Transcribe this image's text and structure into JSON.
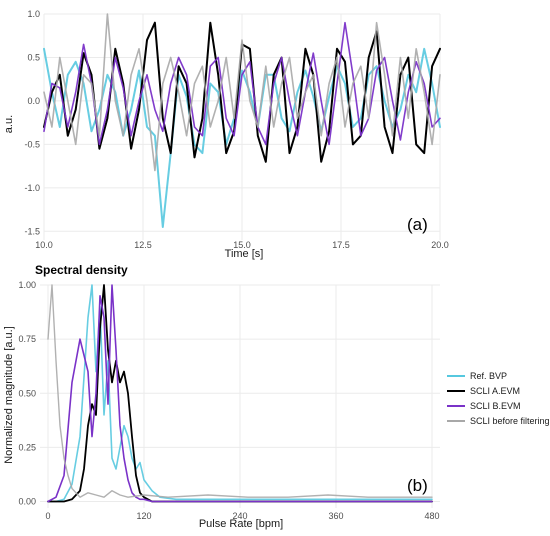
{
  "chart_data": [
    {
      "type": "line",
      "panel_label": "(a)",
      "xlabel": "Time [s]",
      "ylabel": "a.u.",
      "xlim": [
        10.0,
        20.0
      ],
      "ylim": [
        -1.6,
        1.0
      ],
      "x_ticks": [
        10.0,
        12.5,
        15.0,
        17.5,
        20.0
      ],
      "x_tick_labels": [
        "10.0",
        "12.5",
        "15.0",
        "17.5",
        "20.0"
      ],
      "y_ticks": [
        1.0,
        0.5,
        0.0,
        -0.5,
        -1.0,
        -1.5
      ],
      "y_tick_labels": [
        "1.0",
        "0.5",
        "0.0",
        "-0.5",
        "-1.0",
        "-1.5"
      ],
      "grid": true,
      "series": [
        {
          "color": "#56c8df",
          "x": [
            10.0,
            10.2,
            10.4,
            10.6,
            10.8,
            11.0,
            11.2,
            11.4,
            11.6,
            11.8,
            12.0,
            12.2,
            12.4,
            12.6,
            12.8,
            13.0,
            13.2,
            13.4,
            13.6,
            13.8,
            14.0,
            14.2,
            14.4,
            14.6,
            14.8,
            15.0,
            15.2,
            15.4,
            15.6,
            15.8,
            16.0,
            16.2,
            16.4,
            16.6,
            16.8,
            17.0,
            17.2,
            17.4,
            17.6,
            17.8,
            18.0,
            18.2,
            18.4,
            18.6,
            18.8,
            19.0,
            19.2,
            19.4,
            19.6,
            19.8,
            20.0
          ],
          "y": [
            0.6,
            0.1,
            -0.3,
            0.3,
            0.45,
            0.2,
            -0.35,
            -0.1,
            0.3,
            0.1,
            -0.4,
            -0.1,
            0.35,
            -0.3,
            -0.4,
            -1.45,
            -0.6,
            0.3,
            0.05,
            -0.5,
            -0.6,
            0.2,
            0.1,
            -0.5,
            -0.2,
            0.35,
            0.1,
            -0.3,
            0.3,
            0.3,
            -0.2,
            -0.35,
            0.1,
            0.35,
            0.05,
            -0.35,
            0.05,
            0.4,
            0.2,
            -0.3,
            -0.2,
            0.3,
            0.4,
            0.0,
            -0.3,
            -0.1,
            0.3,
            0.1,
            0.6,
            0.2,
            -0.3
          ]
        },
        {
          "color": "#000000",
          "x": [
            10.0,
            10.2,
            10.4,
            10.6,
            10.8,
            11.0,
            11.2,
            11.4,
            11.6,
            11.8,
            12.0,
            12.2,
            12.4,
            12.6,
            12.8,
            13.0,
            13.2,
            13.4,
            13.6,
            13.8,
            14.0,
            14.2,
            14.4,
            14.6,
            14.8,
            15.0,
            15.2,
            15.4,
            15.6,
            15.8,
            16.0,
            16.2,
            16.4,
            16.6,
            16.8,
            17.0,
            17.2,
            17.4,
            17.6,
            17.8,
            18.0,
            18.2,
            18.4,
            18.6,
            18.8,
            19.0,
            19.2,
            19.4,
            19.6,
            19.8,
            20.0
          ],
          "y": [
            -0.3,
            0.1,
            0.3,
            -0.4,
            -0.1,
            0.55,
            0.3,
            -0.55,
            -0.2,
            0.6,
            0.2,
            -0.55,
            -0.1,
            0.7,
            0.9,
            -0.2,
            -0.6,
            0.4,
            0.2,
            -0.65,
            -0.2,
            0.9,
            0.3,
            -0.6,
            -0.35,
            0.65,
            0.6,
            -0.4,
            -0.7,
            0.3,
            0.5,
            -0.6,
            -0.3,
            0.6,
            0.3,
            -0.7,
            -0.35,
            0.6,
            0.45,
            -0.5,
            -0.4,
            0.5,
            0.8,
            -0.3,
            -0.6,
            0.3,
            0.5,
            -0.5,
            -0.6,
            0.4,
            0.6
          ]
        },
        {
          "color": "#7a32c8",
          "x": [
            10.0,
            10.2,
            10.4,
            10.6,
            10.8,
            11.0,
            11.2,
            11.4,
            11.6,
            11.8,
            12.0,
            12.2,
            12.4,
            12.6,
            12.8,
            13.0,
            13.2,
            13.4,
            13.6,
            13.8,
            14.0,
            14.2,
            14.4,
            14.6,
            14.8,
            15.0,
            15.2,
            15.4,
            15.6,
            15.8,
            16.0,
            16.2,
            16.4,
            16.6,
            16.8,
            17.0,
            17.2,
            17.4,
            17.6,
            17.8,
            18.0,
            18.2,
            18.4,
            18.6,
            18.8,
            19.0,
            19.2,
            19.4,
            19.6,
            19.8,
            20.0
          ],
          "y": [
            -0.35,
            0.2,
            0.15,
            -0.3,
            0.1,
            0.65,
            0.2,
            -0.5,
            -0.1,
            0.5,
            0.15,
            -0.4,
            0.0,
            0.3,
            -0.1,
            -0.35,
            0.2,
            0.5,
            0.3,
            -0.3,
            -0.4,
            0.4,
            0.5,
            -0.2,
            -0.4,
            0.3,
            0.45,
            -0.3,
            -0.5,
            0.2,
            0.5,
            0.0,
            -0.4,
            0.1,
            0.55,
            0.0,
            -0.5,
            0.2,
            0.9,
            0.3,
            -0.4,
            -0.2,
            0.35,
            0.5,
            0.0,
            -0.45,
            0.1,
            0.45,
            0.2,
            -0.3,
            -0.2
          ]
        },
        {
          "color": "#a8a8a8",
          "x": [
            10.0,
            10.2,
            10.4,
            10.6,
            10.8,
            11.0,
            11.2,
            11.4,
            11.6,
            11.8,
            12.0,
            12.2,
            12.4,
            12.6,
            12.8,
            13.0,
            13.2,
            13.4,
            13.6,
            13.8,
            14.0,
            14.2,
            14.4,
            14.6,
            14.8,
            15.0,
            15.2,
            15.4,
            15.6,
            15.8,
            16.0,
            16.2,
            16.4,
            16.6,
            16.8,
            17.0,
            17.2,
            17.4,
            17.6,
            17.8,
            18.0,
            18.2,
            18.4,
            18.6,
            18.8,
            19.0,
            19.2,
            19.4,
            19.6,
            19.8,
            20.0
          ],
          "y": [
            0.1,
            -0.3,
            0.5,
            0.0,
            -0.5,
            0.3,
            0.2,
            -0.4,
            1.0,
            0.0,
            -0.4,
            0.3,
            0.6,
            0.0,
            -0.8,
            0.2,
            0.5,
            0.1,
            -0.4,
            0.2,
            0.4,
            -0.3,
            0.0,
            0.5,
            -0.2,
            0.7,
            0.0,
            -0.3,
            0.4,
            -0.3,
            0.2,
            0.5,
            -0.2,
            0.1,
            0.3,
            -0.4,
            0.2,
            0.5,
            -0.3,
            0.2,
            0.4,
            -0.2,
            0.9,
            0.3,
            -0.4,
            0.5,
            -0.2,
            0.6,
            0.1,
            -0.5,
            0.3
          ]
        }
      ]
    },
    {
      "type": "line",
      "title": "Spectral density",
      "panel_label": "(b)",
      "xlabel": "Pulse Rate [bpm]",
      "ylabel": "Normalized magnitude [a.u.]",
      "xlim": [
        -10,
        490
      ],
      "ylim": [
        -0.03,
        1.0
      ],
      "x_ticks": [
        0,
        120,
        240,
        360,
        480
      ],
      "x_tick_labels": [
        "0",
        "120",
        "240",
        "360",
        "480"
      ],
      "y_ticks": [
        1.0,
        0.75,
        0.5,
        0.25,
        0.0
      ],
      "y_tick_labels": [
        "1.00",
        "0.75",
        "0.50",
        "0.25",
        "0.00"
      ],
      "grid": true,
      "legend_position": "right",
      "series": [
        {
          "name": "Ref. BVP",
          "color": "#56c8df",
          "x": [
            0,
            10,
            20,
            30,
            40,
            50,
            55,
            60,
            65,
            70,
            75,
            80,
            85,
            90,
            95,
            100,
            105,
            110,
            115,
            120,
            130,
            140,
            160,
            180,
            200,
            240,
            300,
            360,
            420,
            480
          ],
          "y": [
            0.0,
            0.0,
            0.01,
            0.08,
            0.3,
            0.85,
            1.0,
            0.6,
            0.9,
            0.4,
            0.65,
            0.2,
            0.15,
            0.25,
            0.35,
            0.3,
            0.2,
            0.15,
            0.18,
            0.1,
            0.05,
            0.02,
            0.01,
            0.01,
            0.01,
            0.01,
            0.01,
            0.01,
            0.01,
            0.01
          ]
        },
        {
          "name": "SCLI A.EVM",
          "color": "#000000",
          "x": [
            0,
            20,
            30,
            40,
            45,
            50,
            55,
            60,
            65,
            70,
            75,
            80,
            85,
            90,
            95,
            100,
            105,
            110,
            115,
            120,
            130,
            140,
            160,
            200,
            300,
            400,
            480
          ],
          "y": [
            0.0,
            0.0,
            0.01,
            0.05,
            0.15,
            0.35,
            0.45,
            0.4,
            0.8,
            1.0,
            0.7,
            0.55,
            0.65,
            0.55,
            0.6,
            0.5,
            0.3,
            0.12,
            0.04,
            0.02,
            0.0,
            0.0,
            0.0,
            0.0,
            0.0,
            0.0,
            0.0
          ]
        },
        {
          "name": "SCLI B.EVM",
          "color": "#7a32c8",
          "x": [
            0,
            10,
            20,
            30,
            40,
            50,
            55,
            60,
            65,
            70,
            75,
            80,
            85,
            90,
            95,
            100,
            105,
            110,
            115,
            120,
            130,
            140,
            160,
            200,
            300,
            400,
            480
          ],
          "y": [
            0.0,
            0.02,
            0.12,
            0.55,
            0.75,
            0.6,
            0.3,
            0.5,
            0.95,
            0.85,
            0.45,
            1.0,
            0.7,
            0.35,
            0.2,
            0.1,
            0.04,
            0.02,
            0.01,
            0.01,
            0.0,
            0.0,
            0.0,
            0.0,
            0.0,
            0.0,
            0.0
          ]
        },
        {
          "name": "SCLI before filtering",
          "color": "#a8a8a8",
          "x": [
            0,
            5,
            10,
            15,
            20,
            25,
            30,
            40,
            50,
            60,
            70,
            80,
            90,
            100,
            120,
            150,
            200,
            250,
            300,
            350,
            400,
            450,
            480
          ],
          "y": [
            0.75,
            1.0,
            0.65,
            0.35,
            0.2,
            0.12,
            0.06,
            0.02,
            0.04,
            0.03,
            0.02,
            0.05,
            0.03,
            0.02,
            0.03,
            0.02,
            0.03,
            0.02,
            0.02,
            0.03,
            0.02,
            0.02,
            0.02
          ]
        }
      ]
    }
  ]
}
